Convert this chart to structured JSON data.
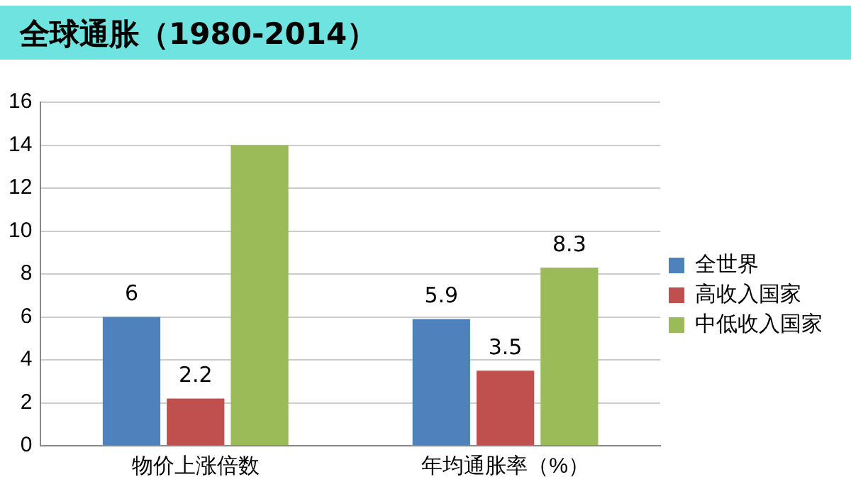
{
  "chart_data": {
    "type": "bar",
    "title": "全球通胀（1980-2014）",
    "categories": [
      "物价上涨倍数",
      "年均通胀率（%）"
    ],
    "series": [
      {
        "name": "全世界",
        "color": "#4f81bd",
        "values": [
          6,
          5.9
        ],
        "value_labels": [
          "6",
          "5.9"
        ]
      },
      {
        "name": "高收入国家",
        "color": "#c0504d",
        "values": [
          2.2,
          3.5
        ],
        "value_labels": [
          "2.2",
          "3.5"
        ]
      },
      {
        "name": "中低收入国家",
        "color": "#9bbb59",
        "values": [
          14,
          8.3
        ],
        "value_labels": [
          null,
          "8.3"
        ]
      }
    ],
    "ylim": [
      0,
      16
    ],
    "yticks": [
      0,
      2,
      4,
      6,
      8,
      10,
      12,
      14,
      16
    ],
    "grid": "y",
    "legend": "right"
  }
}
